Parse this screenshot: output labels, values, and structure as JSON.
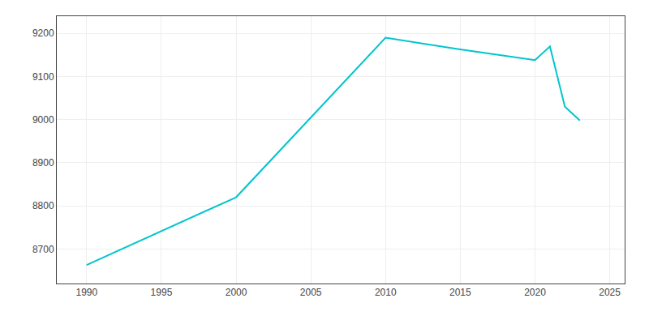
{
  "chart_data": {
    "type": "line",
    "x": [
      1990,
      2000,
      2010,
      2015,
      2020,
      2021,
      2022,
      2023
    ],
    "values": [
      8663,
      8820,
      9190,
      9163,
      9138,
      9170,
      9030,
      8998
    ],
    "color": "#00c5cd",
    "xlim": [
      1988,
      2026
    ],
    "xticks": [
      1990,
      1995,
      2000,
      2005,
      2010,
      2015,
      2020,
      2025
    ],
    "ylim": [
      8620,
      9240
    ],
    "yticks": [
      8700,
      8800,
      8900,
      9000,
      9100,
      9200
    ],
    "grid": true
  }
}
